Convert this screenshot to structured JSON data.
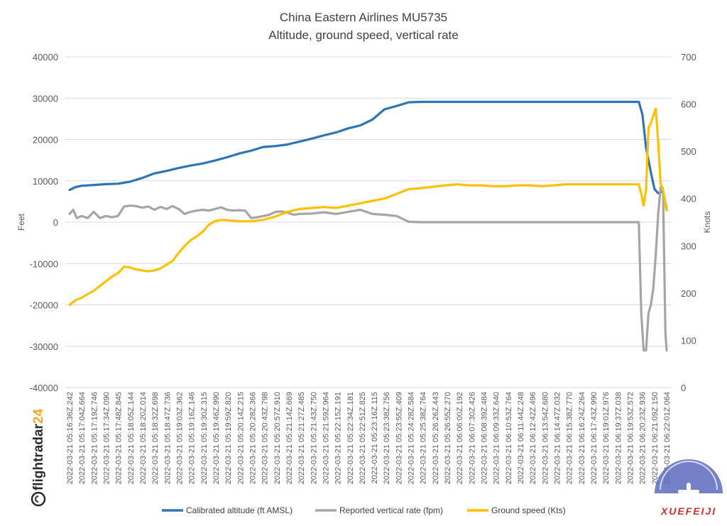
{
  "chart_data": {
    "type": "line",
    "title": "China Eastern Airlines MU5735",
    "subtitle": "Altitude, ground speed, vertical rate",
    "ylabel_left": "Feet",
    "ylabel_right": "Knots",
    "ylim_left": [
      -40000,
      40000
    ],
    "ylim_right": [
      0,
      700
    ],
    "yticks_left": [
      40000,
      30000,
      20000,
      10000,
      0,
      -10000,
      -20000,
      -30000,
      -40000
    ],
    "yticks_right": [
      700,
      600,
      500,
      400,
      300,
      200,
      100,
      0
    ],
    "grid": true,
    "legend_position": "bottom",
    "categories": [
      "2022-03-21 05:16:36Z.242",
      "2022-03-21 05:17:04Z.664",
      "2022-03-21 05:17:19Z.746",
      "2022-03-21 05:17:34Z.090",
      "2022-03-21 05:17:48Z.845",
      "2022-03-21 05:18:05Z.144",
      "2022-03-21 05:18:20Z.014",
      "2022-03-21 05:18:32Z.698",
      "2022-03-21 05:18:47Z.736",
      "2022-03-21 05:19:03Z.362",
      "2022-03-21 05:19:16Z.146",
      "2022-03-21 05:19:30Z.315",
      "2022-03-21 05:19:46Z.990",
      "2022-03-21 05:19:59Z.820",
      "2022-03-21 05:20:14Z.215",
      "2022-03-21 05:20:28Z.366",
      "2022-03-21 05:20:43Z.798",
      "2022-03-21 05:20:57Z.910",
      "2022-03-21 05:21:14Z.669",
      "2022-03-21 05:21:27Z.485",
      "2022-03-21 05:21:43Z.750",
      "2022-03-21 05:21:59Z.964",
      "2022-03-21 05:22:15Z.191",
      "2022-03-21 05:22:34Z.181",
      "2022-03-21 05:22:51Z.825",
      "2022-03-21 05:23:16Z.115",
      "2022-03-21 05:23:38Z.756",
      "2022-03-21 05:23:55Z.409",
      "2022-03-21 05:24:28Z.584",
      "2022-03-21 05:25:38Z.764",
      "2022-03-21 05:26:26Z.443",
      "2022-03-21 05:26:55Z.270",
      "2022-03-21 06:06:00Z.192",
      "2022-03-21 06:07:30Z.426",
      "2022-03-21 06:08:39Z.484",
      "2022-03-21 06:09:33Z.640",
      "2022-03-21 06:10:53Z.764",
      "2022-03-21 06:11:44Z.248",
      "2022-03-21 06:12:42Z.496",
      "2022-03-21 06:13:54Z.680",
      "2022-03-21 06:14:47Z.032",
      "2022-03-21 06:15:38Z.770",
      "2022-03-21 06:16:24Z.264",
      "2022-03-21 06:17:43Z.990",
      "2022-03-21 06:19:01Z.976",
      "2022-03-21 06:19:37Z.038",
      "2022-03-21 06:19:53Z.572",
      "2022-03-21 06:20:23Z.936",
      "2022-03-21 06:21:09Z.150",
      "2022-03-21 06:22:01Z.064"
    ],
    "series": [
      {
        "name": "Calibrated altitude (ft AMSL)",
        "axis": "left",
        "color": "#2e75b6",
        "x": [
          0,
          0.5,
          1,
          2,
          3,
          4,
          5,
          6,
          7,
          8,
          9,
          10,
          11,
          12,
          13,
          14,
          15,
          16,
          17,
          18,
          19,
          20,
          21,
          22,
          23,
          24,
          25,
          26,
          27,
          28,
          29,
          30,
          31,
          32,
          33,
          34,
          35,
          36,
          37,
          38,
          39,
          40,
          41,
          42,
          43,
          44,
          45,
          46,
          47,
          47.3,
          47.6,
          48,
          48.3,
          48.6,
          49,
          49.3
        ],
        "values": [
          7800,
          8500,
          8800,
          9000,
          9200,
          9300,
          9800,
          10700,
          11800,
          12400,
          13100,
          13700,
          14200,
          14900,
          15700,
          16600,
          17300,
          18200,
          18400,
          18800,
          19500,
          20200,
          21000,
          21700,
          22700,
          23400,
          24800,
          27300,
          28100,
          29000,
          29100,
          29100,
          29100,
          29100,
          29100,
          29100,
          29100,
          29100,
          29100,
          29100,
          29100,
          29100,
          29100,
          29100,
          29100,
          29100,
          29100,
          29100,
          29100,
          26000,
          18000,
          12000,
          8000,
          7000,
          7500,
          3000
        ]
      },
      {
        "name": "Reported vertical rate (fpm)",
        "axis": "left",
        "color": "#a5a5a5",
        "x": [
          0,
          0.3,
          0.6,
          1,
          1.5,
          2,
          2.5,
          3,
          3.5,
          4,
          4.5,
          5,
          5.5,
          6,
          6.5,
          7,
          7.5,
          8,
          8.5,
          9,
          9.5,
          10,
          10.5,
          11,
          11.5,
          12,
          12.5,
          13,
          13.5,
          14,
          14.5,
          15,
          15.5,
          16,
          16.5,
          17,
          17.5,
          18,
          18.5,
          19,
          20,
          21,
          22,
          23,
          24,
          25,
          26,
          27,
          28,
          29,
          30,
          31,
          32,
          33,
          34,
          35,
          36,
          37,
          38,
          39,
          40,
          41,
          42,
          43,
          44,
          45,
          46,
          47,
          47.2,
          47.4,
          47.6,
          47.8,
          48,
          48.2,
          48.4,
          48.6,
          48.8,
          49,
          49.2,
          49.3
        ],
        "values": [
          2000,
          3000,
          1000,
          1500,
          1000,
          2500,
          1000,
          1500,
          1200,
          1500,
          3800,
          4000,
          3900,
          3500,
          3800,
          3000,
          3700,
          3200,
          3900,
          3200,
          2000,
          2500,
          2800,
          3000,
          2800,
          3200,
          3600,
          3000,
          2800,
          2900,
          2800,
          1000,
          1200,
          1500,
          1800,
          2500,
          2600,
          2300,
          1800,
          2000,
          2100,
          2400,
          2000,
          2500,
          3000,
          2000,
          1800,
          1500,
          100,
          0,
          0,
          0,
          0,
          0,
          0,
          0,
          0,
          0,
          0,
          0,
          0,
          0,
          0,
          0,
          0,
          0,
          0,
          0,
          -22000,
          -31000,
          -31000,
          -22000,
          -20000,
          -16000,
          -8000,
          2000,
          8500,
          7500,
          -27000,
          -31000
        ]
      },
      {
        "name": "Ground speed (Kts)",
        "axis": "right",
        "color": "#ffc000",
        "x": [
          0,
          0.5,
          1,
          1.5,
          2,
          2.5,
          3,
          3.5,
          4,
          4.5,
          5,
          5.5,
          6,
          6.5,
          7,
          7.5,
          8,
          8.5,
          9,
          9.5,
          10,
          10.5,
          11,
          11.5,
          12,
          12.5,
          13,
          14,
          15,
          16,
          17,
          18,
          19,
          20,
          21,
          22,
          23,
          24,
          25,
          26,
          27,
          28,
          29,
          30,
          31,
          32,
          33,
          34,
          35,
          36,
          37,
          38,
          39,
          40,
          41,
          42,
          43,
          44,
          45,
          46,
          47,
          47.2,
          47.4,
          47.6,
          47.8,
          48,
          48.2,
          48.4,
          48.6,
          48.8,
          49,
          49.2,
          49.3
        ],
        "values": [
          175,
          185,
          190,
          198,
          205,
          215,
          225,
          235,
          242,
          256,
          254,
          250,
          248,
          246,
          248,
          252,
          260,
          268,
          285,
          300,
          312,
          320,
          330,
          345,
          352,
          355,
          354,
          352,
          352,
          355,
          362,
          372,
          378,
          380,
          382,
          380,
          385,
          390,
          395,
          400,
          410,
          420,
          422,
          425,
          428,
          430,
          428,
          428,
          426,
          426,
          428,
          428,
          426,
          428,
          430,
          430,
          430,
          430,
          430,
          430,
          430,
          410,
          385,
          420,
          550,
          560,
          575,
          590,
          520,
          430,
          420,
          385,
          375
        ]
      }
    ]
  },
  "brand": {
    "main": "flightradar",
    "accent": "24"
  },
  "watermark": {
    "text": "XUEFEIJI"
  }
}
